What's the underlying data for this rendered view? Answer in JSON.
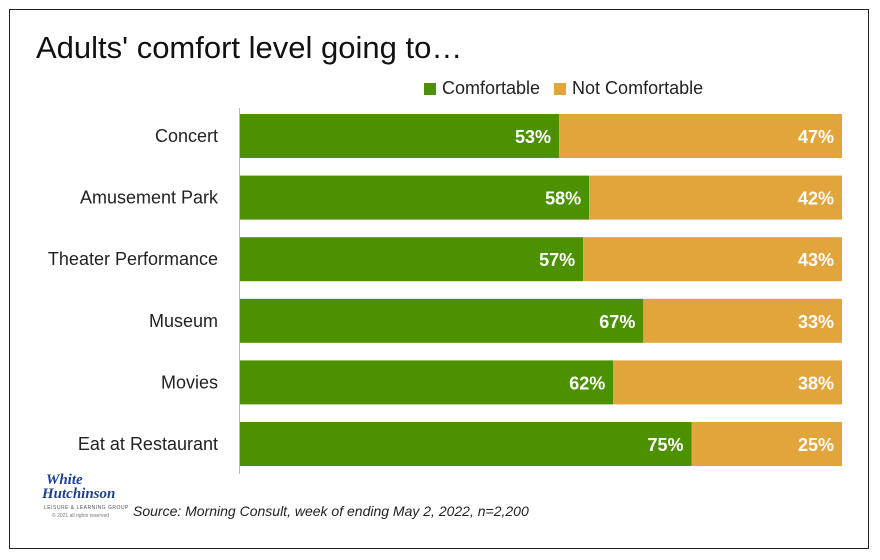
{
  "colors": {
    "comfortable": "#4c9100",
    "not_comfortable": "#e2a53b",
    "label_text": "#ffffff",
    "axis": "#bbbbbb"
  },
  "logo": {
    "line1": "White",
    "line2": "Hutchinson",
    "tagline": "LEISURE & LEARNING GROUP",
    "copyright": "© 2021 all rights reserved"
  },
  "source": "Source: Morning Consult, week of ending May 2, 2022,   n=2,200",
  "chart_data": {
    "type": "bar",
    "orientation": "horizontal",
    "stacked": true,
    "title": "Adults' comfort level going to…",
    "categories": [
      "Concert",
      "Amusement Park",
      "Theater Performance",
      "Museum",
      "Movies",
      "Eat at Restaurant"
    ],
    "series": [
      {
        "name": "Comfortable",
        "values": [
          53,
          58,
          57,
          67,
          62,
          75
        ],
        "labels": [
          "53%",
          "58%",
          "57%",
          "67%",
          "62%",
          "75%"
        ]
      },
      {
        "name": "Not Comfortable",
        "values": [
          47,
          42,
          43,
          33,
          38,
          25
        ],
        "labels": [
          "47%",
          "42%",
          "43%",
          "33%",
          "38%",
          "25%"
        ]
      }
    ],
    "xlim": [
      0,
      100
    ],
    "legend": "top-right",
    "grid": false
  }
}
